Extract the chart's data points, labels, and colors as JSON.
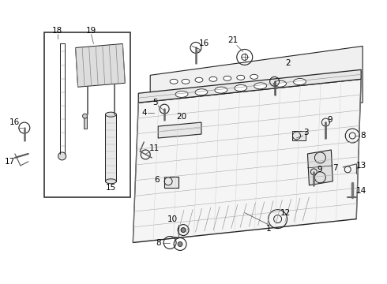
{
  "bg_color": "#ffffff",
  "line_color": "#222222",
  "label_color": "#000000",
  "fig_width": 4.9,
  "fig_height": 3.6,
  "dpi": 100
}
